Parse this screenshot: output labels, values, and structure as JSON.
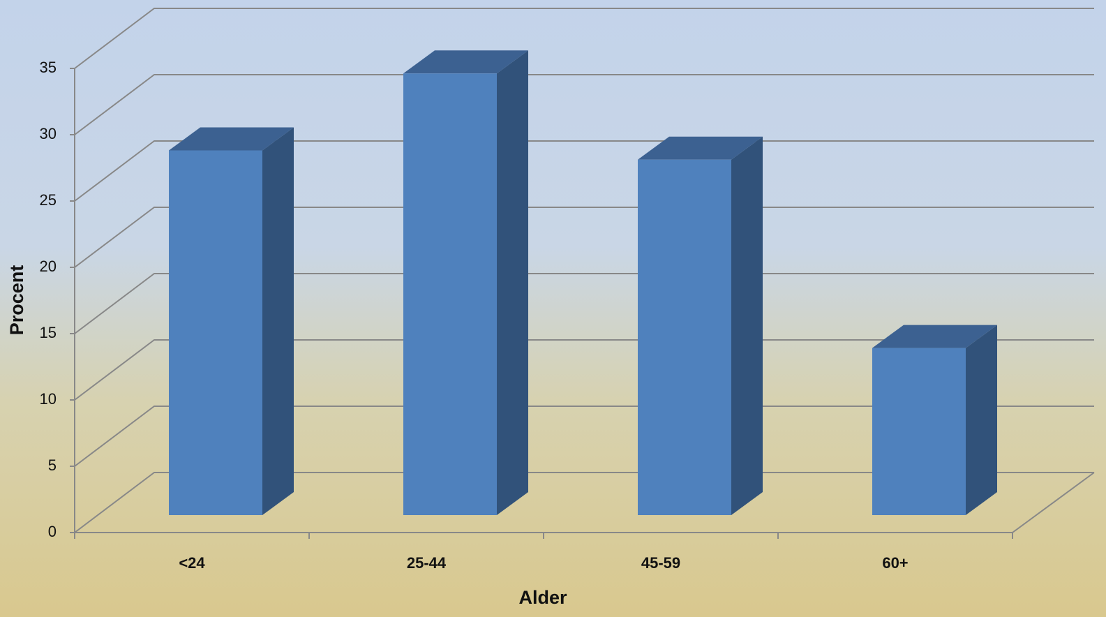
{
  "chart_data": {
    "type": "bar3d",
    "x_label": "Alder",
    "y_label": "Procent",
    "categories": [
      "<24",
      "25-44",
      "45-59",
      "60+"
    ],
    "values": [
      27.5,
      33.3,
      26.8,
      12.6
    ],
    "color": "#4f81bd",
    "ylim": [
      0,
      35
    ],
    "yticks": [
      0,
      5,
      10,
      15,
      20,
      25,
      30,
      35
    ],
    "grid": true
  }
}
